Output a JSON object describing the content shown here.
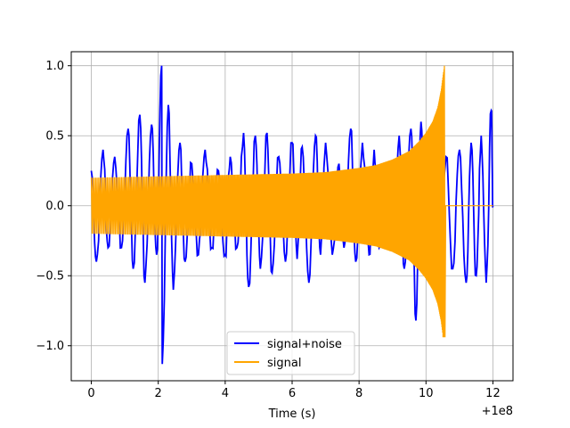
{
  "chart_data": {
    "type": "line",
    "title": "",
    "xlabel": "Time (s)",
    "ylabel": "",
    "x_offset_label": "+1e8",
    "xlim": [
      -0.6,
      12.6
    ],
    "ylim": [
      -1.25,
      1.1
    ],
    "grid": true,
    "legend_position": "lower center",
    "x_ticks": [
      {
        "value": 0,
        "label": "0"
      },
      {
        "value": 2,
        "label": "2"
      },
      {
        "value": 4,
        "label": "4"
      },
      {
        "value": 6,
        "label": "6"
      },
      {
        "value": 8,
        "label": "8"
      },
      {
        "value": 10,
        "label": "10"
      },
      {
        "value": 12,
        "label": "12"
      }
    ],
    "y_ticks": [
      {
        "value": 1.0,
        "label": "1.0"
      },
      {
        "value": 0.5,
        "label": "0.5"
      },
      {
        "value": 0.0,
        "label": "0.0"
      },
      {
        "value": -0.5,
        "label": "−0.5"
      },
      {
        "value": -1.0,
        "label": "−1.0"
      }
    ],
    "series": [
      {
        "name": "signal+noise",
        "color": "#0000ff",
        "peaks": [
          [
            0.0,
            0.25
          ],
          [
            0.15,
            -0.4
          ],
          [
            0.35,
            0.4
          ],
          [
            0.5,
            -0.3
          ],
          [
            0.7,
            0.35
          ],
          [
            0.9,
            -0.3
          ],
          [
            1.1,
            0.55
          ],
          [
            1.25,
            -0.45
          ],
          [
            1.45,
            0.65
          ],
          [
            1.6,
            -0.55
          ],
          [
            1.8,
            0.58
          ],
          [
            1.95,
            -0.35
          ],
          [
            2.1,
            1.0
          ],
          [
            2.12,
            -1.13
          ],
          [
            2.3,
            0.72
          ],
          [
            2.45,
            -0.6
          ],
          [
            2.65,
            0.45
          ],
          [
            2.8,
            -0.4
          ],
          [
            3.0,
            0.3
          ],
          [
            3.2,
            -0.35
          ],
          [
            3.4,
            0.4
          ],
          [
            3.6,
            -0.3
          ],
          [
            3.8,
            0.25
          ],
          [
            4.0,
            -0.35
          ],
          [
            4.15,
            0.35
          ],
          [
            4.35,
            -0.3
          ],
          [
            4.55,
            0.52
          ],
          [
            4.7,
            -0.58
          ],
          [
            4.9,
            0.5
          ],
          [
            5.05,
            -0.45
          ],
          [
            5.25,
            0.52
          ],
          [
            5.4,
            -0.48
          ],
          [
            5.6,
            0.35
          ],
          [
            5.8,
            -0.4
          ],
          [
            6.0,
            0.45
          ],
          [
            6.15,
            -0.38
          ],
          [
            6.3,
            0.42
          ],
          [
            6.5,
            -0.55
          ],
          [
            6.7,
            0.5
          ],
          [
            6.85,
            -0.35
          ],
          [
            7.0,
            0.45
          ],
          [
            7.2,
            -0.35
          ],
          [
            7.4,
            0.3
          ],
          [
            7.55,
            -0.3
          ],
          [
            7.75,
            0.55
          ],
          [
            7.9,
            -0.4
          ],
          [
            8.1,
            0.45
          ],
          [
            8.3,
            -0.35
          ],
          [
            8.45,
            0.4
          ],
          [
            8.6,
            -0.3
          ],
          [
            8.8,
            0.3
          ],
          [
            9.0,
            -0.3
          ],
          [
            9.2,
            0.5
          ],
          [
            9.35,
            -0.45
          ],
          [
            9.55,
            0.55
          ],
          [
            9.7,
            -0.82
          ],
          [
            9.85,
            0.6
          ],
          [
            10.0,
            -0.45
          ],
          [
            10.2,
            0.5
          ],
          [
            10.35,
            -0.45
          ],
          [
            10.6,
            0.35
          ],
          [
            10.8,
            -0.45
          ],
          [
            11.0,
            0.4
          ],
          [
            11.2,
            -0.55
          ],
          [
            11.35,
            0.45
          ],
          [
            11.5,
            -0.5
          ],
          [
            11.65,
            0.5
          ],
          [
            11.8,
            -0.55
          ],
          [
            11.95,
            0.68
          ],
          [
            12.0,
            0.0
          ]
        ]
      },
      {
        "name": "signal",
        "color": "#ffa500",
        "envelope": [
          [
            0.0,
            0.2
          ],
          [
            2.0,
            0.21
          ],
          [
            4.0,
            0.22
          ],
          [
            6.0,
            0.23
          ],
          [
            7.0,
            0.24
          ],
          [
            8.0,
            0.27
          ],
          [
            8.5,
            0.29
          ],
          [
            9.0,
            0.33
          ],
          [
            9.5,
            0.39
          ],
          [
            9.8,
            0.46
          ],
          [
            10.0,
            0.52
          ],
          [
            10.2,
            0.6
          ],
          [
            10.35,
            0.7
          ],
          [
            10.45,
            0.82
          ],
          [
            10.55,
            1.0
          ]
        ],
        "min_at_end": -0.94,
        "flat_after": 10.57,
        "flat_value": 0.0
      }
    ]
  }
}
